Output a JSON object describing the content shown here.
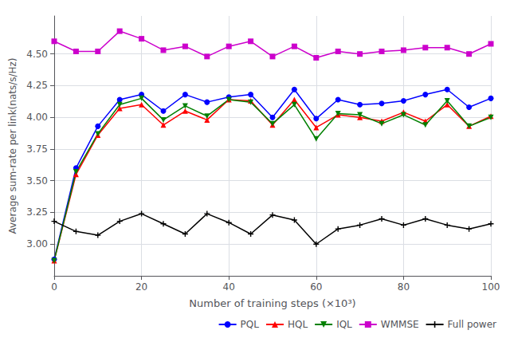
{
  "chart_data": {
    "type": "line",
    "x": [
      0,
      5,
      10,
      15,
      20,
      25,
      30,
      35,
      40,
      45,
      50,
      55,
      60,
      65,
      70,
      75,
      80,
      85,
      90,
      95,
      100
    ],
    "series": [
      {
        "name": "PQL",
        "color": "#0000ff",
        "marker": "circle",
        "values": [
          2.88,
          3.6,
          3.93,
          4.14,
          4.18,
          4.05,
          4.18,
          4.12,
          4.16,
          4.18,
          4.0,
          4.22,
          3.99,
          4.14,
          4.1,
          4.11,
          4.13,
          4.18,
          4.22,
          4.08,
          4.15
        ]
      },
      {
        "name": "HQL",
        "color": "#ff0000",
        "marker": "triangle-up",
        "values": [
          2.87,
          3.55,
          3.86,
          4.07,
          4.1,
          3.94,
          4.05,
          3.98,
          4.14,
          4.13,
          3.94,
          4.14,
          3.92,
          4.02,
          4.0,
          3.97,
          4.04,
          3.97,
          4.1,
          3.93,
          4.01
        ]
      },
      {
        "name": "IQL",
        "color": "#008000",
        "marker": "triangle-down",
        "values": [
          2.87,
          3.57,
          3.87,
          4.1,
          4.15,
          3.98,
          4.09,
          4.01,
          4.14,
          4.12,
          3.95,
          4.1,
          3.83,
          4.03,
          4.02,
          3.95,
          4.02,
          3.94,
          4.13,
          3.93,
          4.0
        ]
      },
      {
        "name": "WMMSE",
        "color": "#cc00cc",
        "marker": "square",
        "values": [
          4.6,
          4.52,
          4.52,
          4.68,
          4.62,
          4.53,
          4.56,
          4.48,
          4.56,
          4.6,
          4.48,
          4.56,
          4.47,
          4.52,
          4.5,
          4.52,
          4.53,
          4.55,
          4.55,
          4.5,
          4.58
        ]
      },
      {
        "name": "Full power",
        "color": "#000000",
        "marker": "plus",
        "values": [
          3.18,
          3.1,
          3.07,
          3.18,
          3.24,
          3.16,
          3.08,
          3.24,
          3.17,
          3.08,
          3.23,
          3.19,
          3.0,
          3.12,
          3.15,
          3.2,
          3.15,
          3.2,
          3.15,
          3.12,
          3.16
        ]
      }
    ],
    "xlabel": "Number of training steps (×10³)",
    "ylabel": "Average sum-rate per link(nats/s/Hz)",
    "xlim": [
      0,
      100
    ],
    "xticks": [
      0,
      20,
      40,
      60,
      80,
      100
    ],
    "ylim": [
      2.75,
      4.8
    ],
    "yticks": [
      {
        "value": 3,
        "label": "3.00"
      },
      3.25,
      {
        "value": 3.5,
        "label": "3.50"
      },
      3.75,
      {
        "value": 4,
        "label": "4.00"
      },
      4.25,
      {
        "value": 4.5,
        "label": "4.50"
      }
    ],
    "grid": true,
    "legend": "lower right"
  }
}
